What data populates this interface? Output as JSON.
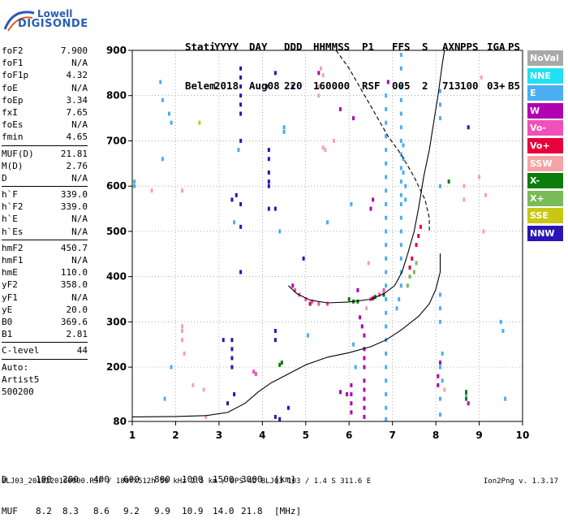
{
  "logo": {
    "line1": "Lowell",
    "line2": "DIGISONDE"
  },
  "header": {
    "row1": [
      "Stati",
      "YYYY",
      "DAY",
      "DDD",
      "HHMMSS",
      "P1",
      "FFS",
      "S",
      "AXN",
      "PPS",
      "IGA",
      "PS"
    ],
    "row2": [
      "Belem",
      "2018",
      "Aug08",
      "220",
      "160000",
      "RSF",
      "005",
      "2",
      "713",
      "100",
      "03+",
      "B5"
    ]
  },
  "params": {
    "group1": [
      {
        "k": "foF2",
        "v": "7.900"
      },
      {
        "k": "foF1",
        "v": "N/A"
      },
      {
        "k": "foF1p",
        "v": "4.32"
      },
      {
        "k": "foE",
        "v": "N/A"
      },
      {
        "k": "foEp",
        "v": "3.34"
      },
      {
        "k": "fxI",
        "v": "7.65"
      },
      {
        "k": "foEs",
        "v": "N/A"
      },
      {
        "k": "fmin",
        "v": "4.65"
      }
    ],
    "group2": [
      {
        "k": "MUF(D)",
        "v": "21.81"
      },
      {
        "k": "M(D)",
        "v": "2.76"
      },
      {
        "k": "D",
        "v": "N/A"
      }
    ],
    "group3": [
      {
        "k": "h`F",
        "v": "339.0"
      },
      {
        "k": "h`F2",
        "v": "339.0"
      },
      {
        "k": "h`E",
        "v": "N/A"
      },
      {
        "k": "h`Es",
        "v": "N/A"
      }
    ],
    "group4": [
      {
        "k": "hmF2",
        "v": "450.7"
      },
      {
        "k": "hmF1",
        "v": "N/A"
      },
      {
        "k": "hmE",
        "v": "110.0"
      },
      {
        "k": "yF2",
        "v": "358.0"
      },
      {
        "k": "yF1",
        "v": "N/A"
      },
      {
        "k": "yE",
        "v": "20.0"
      },
      {
        "k": "B0",
        "v": "369.6"
      },
      {
        "k": "B1",
        "v": "2.81"
      }
    ],
    "group5": [
      {
        "k": "C-level",
        "v": "44"
      }
    ],
    "group6": [
      "Auto:",
      "Artist5",
      "500200"
    ]
  },
  "legend": [
    {
      "label": "NoVal",
      "color": "#a9a9a9"
    },
    {
      "label": "NNE",
      "color": "#22e0f0"
    },
    {
      "label": "E",
      "color": "#4aaef0"
    },
    {
      "label": "W",
      "color": "#b000b0"
    },
    {
      "label": "Vo-",
      "color": "#f050b8"
    },
    {
      "label": "Vo+",
      "color": "#e8003c"
    },
    {
      "label": "SSW",
      "color": "#f4a4a4"
    },
    {
      "label": "X-",
      "color": "#0a7d0a"
    },
    {
      "label": "X+",
      "color": "#78bb58"
    },
    {
      "label": "SSE",
      "color": "#c8c814"
    },
    {
      "label": "NNW",
      "color": "#2a14b8"
    }
  ],
  "bottom": {
    "d_label": "D",
    "d_values": [
      "100",
      "200",
      "400",
      "600",
      "800",
      "1000",
      "1500",
      "3000",
      "[km]"
    ],
    "muf_label": "MUF",
    "muf_values": [
      "8.2",
      "8.3",
      "8.6",
      "9.2",
      "9.9",
      "10.9",
      "14.0",
      "21.8",
      "[MHz]"
    ]
  },
  "footer": {
    "left": "BLJ03_2018220160000.RSF / 180fx512h 50 kHz 2.5 km / DPS-4D BLJ03 103 / 1.4 S 311.6 E",
    "right": "Ion2Png v. 1.3.17"
  },
  "chart_data": {
    "type": "scatter",
    "xlim": [
      1,
      10
    ],
    "ylim": [
      80,
      900
    ],
    "xticks": [
      1,
      2,
      3,
      4,
      5,
      6,
      7,
      8,
      9,
      10
    ],
    "yticks": [
      80,
      200,
      300,
      400,
      500,
      600,
      700,
      800,
      900
    ],
    "grid": "dotted",
    "legend_placement": "right",
    "series": [
      {
        "color_key": "E",
        "points": [
          [
            7.2,
            890
          ],
          [
            7.2,
            860
          ],
          [
            7.2,
            820
          ],
          [
            7.2,
            790
          ],
          [
            7.2,
            760
          ],
          [
            7.2,
            730
          ],
          [
            7.2,
            700
          ],
          [
            7.2,
            670
          ],
          [
            7.2,
            640
          ],
          [
            7.2,
            610
          ],
          [
            7.2,
            580
          ],
          [
            7.2,
            560
          ],
          [
            7.2,
            530
          ],
          [
            7.2,
            500
          ],
          [
            7.2,
            470
          ],
          [
            7.2,
            440
          ],
          [
            7.2,
            410
          ],
          [
            7.2,
            380
          ],
          [
            7.15,
            350
          ],
          [
            7.1,
            330
          ],
          [
            6.85,
            800
          ],
          [
            6.85,
            770
          ],
          [
            6.85,
            740
          ],
          [
            6.85,
            710
          ],
          [
            6.85,
            680
          ],
          [
            6.85,
            650
          ],
          [
            6.85,
            620
          ],
          [
            6.85,
            590
          ],
          [
            6.85,
            560
          ],
          [
            6.85,
            530
          ],
          [
            6.85,
            500
          ],
          [
            6.85,
            470
          ],
          [
            6.85,
            440
          ],
          [
            6.85,
            410
          ],
          [
            6.85,
            380
          ],
          [
            6.85,
            350
          ],
          [
            6.85,
            320
          ],
          [
            6.85,
            290
          ],
          [
            6.85,
            260
          ],
          [
            6.85,
            230
          ],
          [
            6.85,
            200
          ],
          [
            6.85,
            170
          ],
          [
            6.85,
            140
          ],
          [
            6.85,
            110
          ],
          [
            6.85,
            85
          ],
          [
            7.25,
            690
          ],
          [
            7.25,
            660
          ],
          [
            7.25,
            630
          ],
          [
            7.3,
            600
          ],
          [
            7.3,
            570
          ],
          [
            8.1,
            810
          ],
          [
            8.1,
            780
          ],
          [
            8.1,
            750
          ],
          [
            8.1,
            600
          ],
          [
            8.1,
            360
          ],
          [
            8.1,
            330
          ],
          [
            8.1,
            300
          ],
          [
            8.15,
            230
          ],
          [
            8.1,
            200
          ],
          [
            8.15,
            170
          ],
          [
            8.1,
            130
          ],
          [
            8.1,
            95
          ],
          [
            1.05,
            610
          ],
          [
            1.05,
            600
          ],
          [
            1.65,
            830
          ],
          [
            1.7,
            790
          ],
          [
            1.85,
            760
          ],
          [
            1.9,
            740
          ],
          [
            1.7,
            660
          ],
          [
            1.9,
            200
          ],
          [
            1.75,
            130
          ],
          [
            3.35,
            520
          ],
          [
            4.5,
            730
          ],
          [
            5.5,
            520
          ],
          [
            6.05,
            560
          ],
          [
            6.1,
            250
          ],
          [
            6.15,
            200
          ],
          [
            8.7,
            140
          ],
          [
            9.5,
            300
          ],
          [
            9.55,
            280
          ],
          [
            9.6,
            130
          ],
          [
            3.45,
            680
          ],
          [
            4.4,
            500
          ],
          [
            4.5,
            720
          ],
          [
            5.05,
            270
          ]
        ]
      },
      {
        "color_key": "NNW",
        "points": [
          [
            3.5,
            860
          ],
          [
            3.5,
            840
          ],
          [
            3.5,
            820
          ],
          [
            3.5,
            800
          ],
          [
            3.5,
            780
          ],
          [
            3.5,
            760
          ],
          [
            3.5,
            700
          ],
          [
            3.5,
            560
          ],
          [
            3.5,
            510
          ],
          [
            3.4,
            580
          ],
          [
            3.3,
            570
          ],
          [
            3.3,
            260
          ],
          [
            3.3,
            240
          ],
          [
            3.3,
            220
          ],
          [
            3.3,
            200
          ],
          [
            3.1,
            260
          ],
          [
            3.35,
            140
          ],
          [
            3.2,
            120
          ],
          [
            3.5,
            410
          ],
          [
            4.15,
            680
          ],
          [
            4.15,
            660
          ],
          [
            4.15,
            630
          ],
          [
            4.15,
            610
          ],
          [
            4.15,
            600
          ],
          [
            4.15,
            550
          ],
          [
            4.3,
            550
          ],
          [
            4.1,
            820
          ],
          [
            4.3,
            850
          ],
          [
            4.3,
            280
          ],
          [
            4.3,
            260
          ],
          [
            4.7,
            820
          ],
          [
            4.95,
            440
          ],
          [
            4.6,
            110
          ],
          [
            4.3,
            90
          ],
          [
            4.4,
            85
          ],
          [
            8.75,
            730
          ]
        ]
      },
      {
        "color_key": "W",
        "points": [
          [
            5.3,
            850
          ],
          [
            5.8,
            770
          ],
          [
            6.1,
            750
          ],
          [
            6.9,
            830
          ],
          [
            6.5,
            550
          ],
          [
            6.55,
            570
          ],
          [
            6.05,
            160
          ],
          [
            6.05,
            140
          ],
          [
            6.05,
            120
          ],
          [
            6.05,
            100
          ],
          [
            6.25,
            310
          ],
          [
            6.3,
            290
          ],
          [
            6.35,
            270
          ],
          [
            6.35,
            240
          ],
          [
            6.35,
            220
          ],
          [
            6.35,
            200
          ],
          [
            6.35,
            170
          ],
          [
            6.35,
            150
          ],
          [
            6.35,
            130
          ],
          [
            6.35,
            110
          ],
          [
            6.35,
            90
          ],
          [
            5.95,
            140
          ],
          [
            8.1,
            210
          ],
          [
            8.05,
            180
          ],
          [
            8.05,
            160
          ],
          [
            8.75,
            120
          ],
          [
            4.7,
            380
          ],
          [
            5.8,
            145
          ],
          [
            6.2,
            370
          ]
        ]
      },
      {
        "color_key": "Vo-",
        "points": [
          [
            4.75,
            370
          ],
          [
            4.85,
            360
          ],
          [
            5.0,
            350
          ],
          [
            5.15,
            345
          ],
          [
            5.3,
            340
          ],
          [
            5.5,
            340
          ],
          [
            6.5,
            350
          ],
          [
            6.6,
            355
          ],
          [
            6.7,
            360
          ],
          [
            6.8,
            370
          ],
          [
            3.85,
            185
          ],
          [
            3.8,
            190
          ]
        ]
      },
      {
        "color_key": "Vo+",
        "points": [
          [
            7.4,
            420
          ],
          [
            7.45,
            440
          ],
          [
            7.55,
            470
          ],
          [
            7.6,
            490
          ],
          [
            7.65,
            510
          ],
          [
            5.1,
            340
          ],
          [
            6.55,
            352
          ]
        ]
      },
      {
        "color_key": "SSW",
        "points": [
          [
            1.45,
            590
          ],
          [
            2.15,
            590
          ],
          [
            2.15,
            290
          ],
          [
            2.15,
            280
          ],
          [
            2.15,
            260
          ],
          [
            2.4,
            160
          ],
          [
            2.65,
            150
          ],
          [
            2.7,
            90
          ],
          [
            5.3,
            820
          ],
          [
            5.3,
            800
          ],
          [
            5.65,
            700
          ],
          [
            5.4,
            685
          ],
          [
            5.45,
            680
          ],
          [
            6.4,
            330
          ],
          [
            6.45,
            430
          ],
          [
            8.65,
            600
          ],
          [
            8.65,
            570
          ],
          [
            9.05,
            840
          ],
          [
            9.0,
            620
          ],
          [
            9.15,
            580
          ],
          [
            9.1,
            500
          ],
          [
            8.2,
            150
          ],
          [
            2.2,
            230
          ],
          [
            5.35,
            860
          ],
          [
            5.4,
            845
          ]
        ]
      },
      {
        "color_key": "X-",
        "points": [
          [
            4.45,
            210
          ],
          [
            4.4,
            205
          ],
          [
            6.0,
            350
          ],
          [
            6.1,
            345
          ],
          [
            6.2,
            345
          ],
          [
            6.6,
            355
          ],
          [
            6.8,
            360
          ],
          [
            8.3,
            610
          ],
          [
            8.7,
            145
          ],
          [
            8.7,
            130
          ]
        ]
      },
      {
        "color_key": "X+",
        "points": [
          [
            7.5,
            410
          ],
          [
            7.55,
            430
          ],
          [
            7.35,
            380
          ],
          [
            7.4,
            400
          ]
        ]
      },
      {
        "color_key": "SSE",
        "points": [
          [
            2.55,
            740
          ]
        ]
      }
    ],
    "curves": [
      {
        "name": "profile",
        "style": "solid",
        "points": [
          [
            1,
            90
          ],
          [
            2,
            91
          ],
          [
            2.7,
            93
          ],
          [
            3.2,
            100
          ],
          [
            3.6,
            120
          ],
          [
            3.9,
            145
          ],
          [
            4.2,
            165
          ],
          [
            4.6,
            185
          ],
          [
            5.0,
            205
          ],
          [
            5.5,
            222
          ],
          [
            6.0,
            232
          ],
          [
            6.5,
            245
          ],
          [
            6.85,
            260
          ],
          [
            7.2,
            282
          ],
          [
            7.6,
            312
          ],
          [
            7.85,
            340
          ],
          [
            8.0,
            372
          ],
          [
            8.1,
            410
          ],
          [
            8.1,
            451
          ]
        ]
      },
      {
        "name": "trace",
        "style": "solid",
        "points": [
          [
            4.6,
            380
          ],
          [
            4.8,
            362
          ],
          [
            5.1,
            348
          ],
          [
            5.5,
            342
          ],
          [
            6.0,
            344
          ],
          [
            6.5,
            350
          ],
          [
            6.8,
            362
          ],
          [
            7.05,
            380
          ],
          [
            7.22,
            410
          ],
          [
            7.35,
            450
          ],
          [
            7.5,
            500
          ],
          [
            7.6,
            550
          ],
          [
            7.72,
            620
          ],
          [
            7.85,
            680
          ],
          [
            7.95,
            740
          ],
          [
            8.05,
            800
          ],
          [
            8.15,
            870
          ],
          [
            8.2,
            900
          ]
        ]
      },
      {
        "name": "dashed",
        "style": "dashed",
        "points": [
          [
            5.7,
            900
          ],
          [
            6.0,
            860
          ],
          [
            6.3,
            810
          ],
          [
            6.6,
            760
          ],
          [
            6.9,
            710
          ],
          [
            7.2,
            670
          ],
          [
            7.5,
            620
          ],
          [
            7.75,
            570
          ],
          [
            7.85,
            530
          ],
          [
            7.85,
            500
          ]
        ]
      }
    ]
  }
}
